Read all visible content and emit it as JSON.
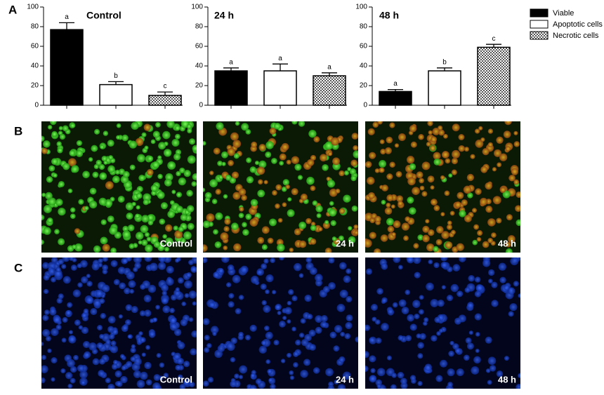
{
  "panels": [
    "A",
    "B",
    "C"
  ],
  "legend": [
    "Viable",
    "Apoptotic cells",
    "Necrotic cells"
  ],
  "chart_data": [
    {
      "type": "bar",
      "title": "Control",
      "categories": [
        null,
        null,
        null
      ],
      "values": [
        77,
        21,
        10
      ],
      "errors": [
        7,
        3,
        3.5
      ],
      "annotations": [
        "a",
        "b",
        "c"
      ],
      "fills": [
        "black",
        "white",
        "checker"
      ],
      "ylim": [
        0,
        100
      ],
      "yticks": [
        0,
        20,
        40,
        60,
        80,
        100
      ]
    },
    {
      "type": "bar",
      "title": "24 h",
      "categories": [
        null,
        null,
        null
      ],
      "values": [
        35,
        35,
        30
      ],
      "errors": [
        3,
        7,
        3
      ],
      "annotations": [
        "a",
        "a",
        "a"
      ],
      "fills": [
        "black",
        "white",
        "checker"
      ],
      "ylim": [
        0,
        100
      ],
      "yticks": [
        0,
        20,
        40,
        60,
        80,
        100
      ]
    },
    {
      "type": "bar",
      "title": "48 h",
      "categories": [
        null,
        null,
        null
      ],
      "values": [
        14,
        35,
        59
      ],
      "errors": [
        2,
        3,
        3
      ],
      "annotations": [
        "a",
        "b",
        "c"
      ],
      "fills": [
        "black",
        "white",
        "checker"
      ],
      "ylim": [
        0,
        100
      ],
      "yticks": [
        0,
        20,
        40,
        60,
        80,
        100
      ]
    }
  ],
  "images": {
    "fluorescence": [
      "Control",
      "24 h",
      "48 h"
    ],
    "nuclear": [
      "Control",
      "24 h",
      "48 h"
    ]
  }
}
